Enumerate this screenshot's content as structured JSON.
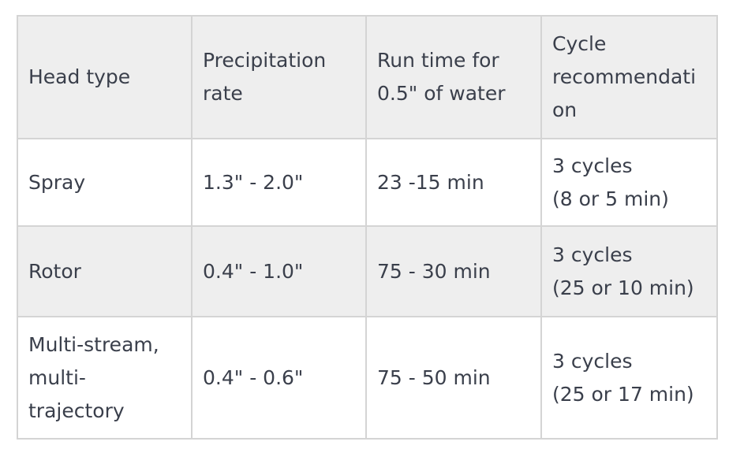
{
  "table": {
    "headers": {
      "head_type": "Head type",
      "precip_l1": "Precipitation",
      "precip_l2": "rate",
      "runtime_l1": "Run time for",
      "runtime_l2": "0.5\" of water",
      "cycle_l1": "Cycle",
      "cycle_l2": "recommendati",
      "cycle_l3": "on"
    },
    "rows": [
      {
        "head_type": "Spray",
        "precip": "1.3\" - 2.0\"",
        "runtime": "23 -15 min",
        "cycle_l1": "3 cycles",
        "cycle_l2": "(8 or 5 min)"
      },
      {
        "head_type": "Rotor",
        "precip": "0.4\" - 1.0\"",
        "runtime": "75 - 30 min",
        "cycle_l1": "3 cycles",
        "cycle_l2": "(25 or 10 min)"
      },
      {
        "head_type_l1": "Multi-stream,",
        "head_type_l2": "multi-",
        "head_type_l3": "trajectory",
        "precip": "0.4\" - 0.6\"",
        "runtime": "75 - 50 min",
        "cycle_l1": "3 cycles",
        "cycle_l2": "(25 or 17 min)"
      }
    ]
  }
}
